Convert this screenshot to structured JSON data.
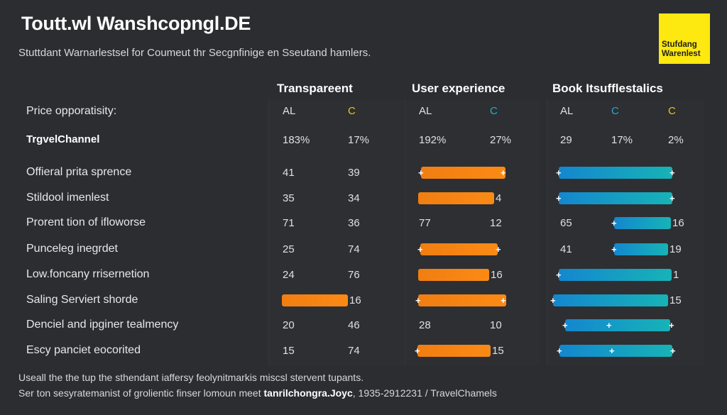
{
  "header": {
    "title": "Toutt.wl Wanshcopngl.DE",
    "subtitle": "Stuttdant Warnarlestsel for Coumeut thr Secgnfinige en Sseutand hamlers.",
    "badge": [
      "Stufdang",
      "Warenlest"
    ]
  },
  "colors": {
    "orange": "#f58312",
    "blue": "#1387cf",
    "teal": "#17b3b7",
    "yellow": "#fde810",
    "background": "#2b2d31"
  },
  "columns": [
    {
      "title": "Transpareent",
      "subheaders": [
        {
          "text": "AL",
          "color": "#e0e0e0"
        },
        {
          "text": "C",
          "color": "#e6c619"
        }
      ],
      "summary": [
        "183%",
        "17%"
      ]
    },
    {
      "title": "User experience",
      "subheaders": [
        {
          "text": "AL",
          "color": "#e0e0e0"
        },
        {
          "text": "C",
          "color": "#19b5c0"
        }
      ],
      "summary": [
        "192%",
        "27%"
      ]
    },
    {
      "title": "Book Itsufflestalics",
      "subheaders": [
        {
          "text": "AL",
          "color": "#e0e0e0"
        },
        {
          "text": "C",
          "color": "#2aa4dc"
        },
        {
          "text": "C",
          "color": "#e6c619"
        }
      ],
      "summary": [
        "29",
        "17%",
        "2%"
      ]
    }
  ],
  "row_header": {
    "label": "Price opporatisity:",
    "channel": "TrgvelChannel"
  },
  "rows": [
    {
      "label": "Offieral prita sprence",
      "cells": [
        [
          "41",
          "39"
        ],
        {
          "bar": true,
          "end": ""
        },
        {
          "bar": true,
          "end": ""
        }
      ]
    },
    {
      "label": "Stildool imenlest",
      "cells": [
        [
          "35",
          "34"
        ],
        {
          "bar": true,
          "end": "4"
        },
        {
          "bar": true,
          "end": ""
        }
      ]
    },
    {
      "label": "Prorent tion of ifloworse",
      "cells": [
        [
          "71",
          "36"
        ],
        [
          "77",
          "12"
        ],
        {
          "lead": "65",
          "bar": true,
          "end": "16"
        }
      ]
    },
    {
      "label": "Punceleg inegrdet",
      "cells": [
        [
          "25",
          "74"
        ],
        {
          "bar": true,
          "end": ""
        },
        {
          "lead": "41",
          "bar": true,
          "end": "19"
        }
      ]
    },
    {
      "label": "Low.foncany rrisernetion",
      "cells": [
        [
          "24",
          "76"
        ],
        {
          "bar": true,
          "end": "16"
        },
        {
          "bar": true,
          "end": "1"
        }
      ]
    },
    {
      "label": "Saling Serviert shorde",
      "cells": [
        {
          "bar": true,
          "end": "16"
        },
        {
          "bar": true,
          "end": ""
        },
        {
          "bar": true,
          "end": "15"
        }
      ]
    },
    {
      "label": "Denciel and ipginer tealmency",
      "cells": [
        [
          "20",
          "46"
        ],
        [
          "28",
          "10"
        ],
        {
          "bar": true,
          "end": ""
        }
      ]
    },
    {
      "label": "Escy panciet eocorited",
      "cells": [
        [
          "15",
          "74"
        ],
        {
          "bar": true,
          "end": "15"
        },
        {
          "bar": true,
          "end": ""
        }
      ]
    }
  ],
  "footer": {
    "line1": "Useall the the tup the sthendant iaffersy feolynitmarkis miscsl stervent tupants.",
    "line2_prefix": "Ser ton sesyratemanist of grolientic finser lomoun meet ",
    "line2_bold": "tanrilchongra.Joyc",
    "line2_suffix": ", 1935-2912231 / TravelChamels"
  }
}
